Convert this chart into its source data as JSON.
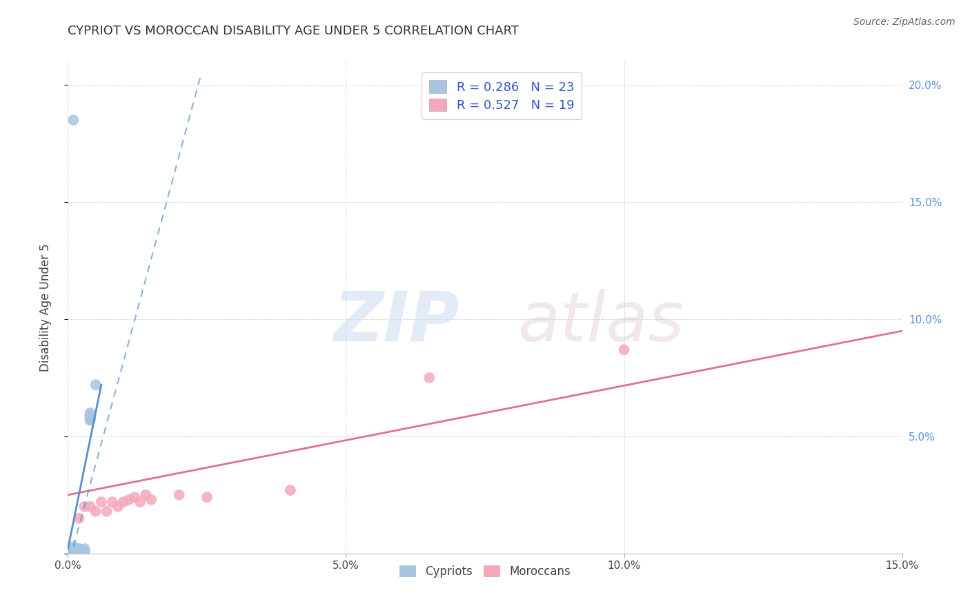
{
  "title": "CYPRIOT VS MOROCCAN DISABILITY AGE UNDER 5 CORRELATION CHART",
  "source": "Source: ZipAtlas.com",
  "ylabel": "Disability Age Under 5",
  "xlim": [
    0.0,
    0.15
  ],
  "ylim": [
    0.0,
    0.21
  ],
  "x_ticks": [
    0.0,
    0.05,
    0.1,
    0.15
  ],
  "x_tick_labels": [
    "0.0%",
    "5.0%",
    "10.0%",
    "15.0%"
  ],
  "y_ticks": [
    0.0,
    0.05,
    0.1,
    0.15,
    0.2
  ],
  "y_tick_labels_right": [
    "",
    "5.0%",
    "10.0%",
    "15.0%",
    "20.0%"
  ],
  "cypriot_R": 0.286,
  "cypriot_N": 23,
  "moroccan_R": 0.527,
  "moroccan_N": 19,
  "cypriot_color": "#a8c4e0",
  "moroccan_color": "#f4a8b8",
  "cypriot_line_color": "#5590cc",
  "moroccan_line_color": "#e07090",
  "title_fontsize": 13,
  "label_fontsize": 12,
  "tick_fontsize": 11,
  "cypriot_x": [
    0.001,
    0.001,
    0.001,
    0.001,
    0.002,
    0.002,
    0.002,
    0.002,
    0.003,
    0.003,
    0.003,
    0.003,
    0.004,
    0.004,
    0.004,
    0.004,
    0.004,
    0.004,
    0.004,
    0.004,
    0.004,
    0.005,
    0.001
  ],
  "cypriot_y": [
    0.001,
    0.001,
    0.002,
    0.003,
    0.001,
    0.001,
    0.002,
    0.002,
    0.001,
    0.001,
    0.001,
    0.002,
    0.057,
    0.058,
    0.059,
    0.057,
    0.058,
    0.059,
    0.06,
    0.057,
    0.059,
    0.072,
    0.185
  ],
  "moroccan_x": [
    0.002,
    0.003,
    0.004,
    0.005,
    0.006,
    0.007,
    0.008,
    0.009,
    0.01,
    0.011,
    0.012,
    0.013,
    0.014,
    0.015,
    0.02,
    0.025,
    0.04,
    0.065,
    0.1
  ],
  "moroccan_y": [
    0.015,
    0.02,
    0.02,
    0.018,
    0.022,
    0.018,
    0.022,
    0.02,
    0.022,
    0.023,
    0.024,
    0.022,
    0.025,
    0.023,
    0.025,
    0.024,
    0.027,
    0.075,
    0.087
  ],
  "cypriot_line_x": [
    0.0,
    0.012
  ],
  "cypriot_line_y_start": 0.002,
  "cypriot_line_slope": 12.0,
  "moroccan_line_x_start": 0.0,
  "moroccan_line_x_end": 0.15,
  "moroccan_line_y_start": 0.025,
  "moroccan_line_y_end": 0.095
}
